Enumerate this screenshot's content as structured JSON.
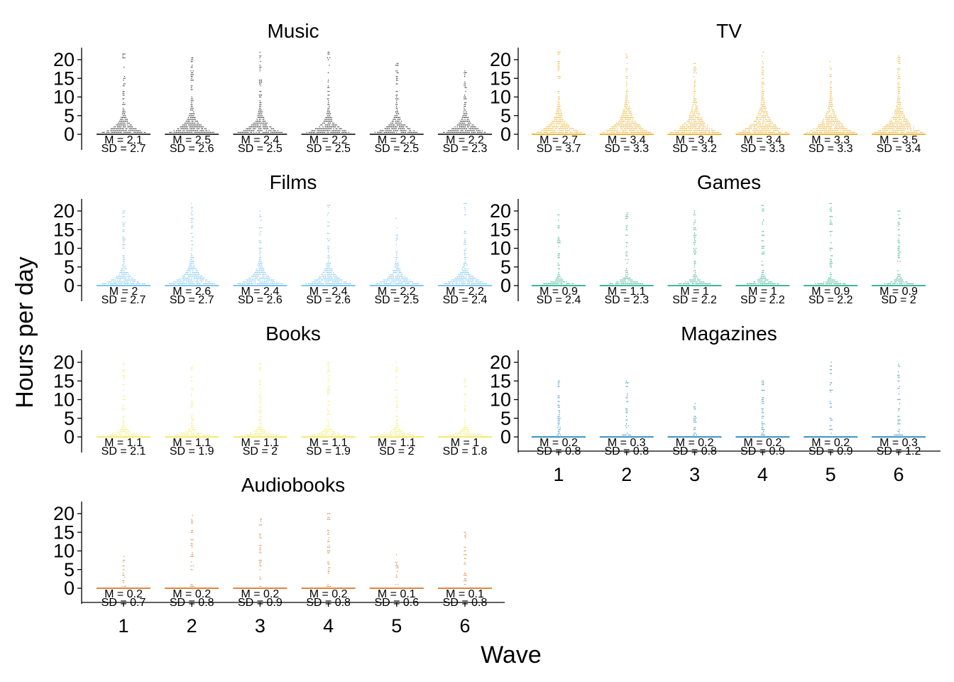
{
  "chart_data": {
    "type": "scatter",
    "subtype": "dot-histogram / beeswarm per wave",
    "xlabel": "Wave",
    "ylabel": "Hours per day",
    "x_categories": [
      "1",
      "2",
      "3",
      "4",
      "5",
      "6"
    ],
    "y_ticks": [
      0,
      5,
      10,
      15,
      20
    ],
    "ylim": [
      -3,
      23
    ],
    "grid": false,
    "legend": "none",
    "panels": [
      {
        "title": "Music",
        "color": "#000000",
        "max_hours": [
          22,
          21,
          22,
          22,
          22,
          17
        ],
        "M": [
          "M = 2.1",
          "M = 2.5",
          "M = 2.4",
          "M = 2.2",
          "M = 2.2",
          "M = 2.2"
        ],
        "SD": [
          "SD = 2.7",
          "SD = 2.6",
          "SD = 2.5",
          "SD = 2.5",
          "SD = 2.5",
          "SD = 2.3"
        ]
      },
      {
        "title": "TV",
        "color": "#E69F00",
        "max_hours": [
          22,
          22,
          21,
          22,
          22,
          21
        ],
        "M": [
          "M = 2.7",
          "M = 3.4",
          "M = 3.4",
          "M = 3.4",
          "M = 3.3",
          "M = 3.5"
        ],
        "SD": [
          "SD = 3.7",
          "SD = 3.3",
          "SD = 3.2",
          "SD = 3.3",
          "SD = 3.3",
          "SD = 3.4"
        ]
      },
      {
        "title": "Films",
        "color": "#56B4E9",
        "max_hours": [
          20,
          22,
          20,
          22,
          20,
          22
        ],
        "M": [
          "M = 2",
          "M = 2.6",
          "M = 2.4",
          "M = 2.4",
          "M = 2.2",
          "M = 2.2"
        ],
        "SD": [
          "SD = 2.7",
          "SD = 2.7",
          "SD = 2.6",
          "SD = 2.6",
          "SD = 2.5",
          "SD = 2.4"
        ]
      },
      {
        "title": "Games",
        "color": "#009E73",
        "max_hours": [
          21,
          20,
          20,
          22,
          22,
          20
        ],
        "M": [
          "M = 0.9",
          "M = 1.1",
          "M = 1",
          "M = 1",
          "M = 0.9",
          "M = 0.9"
        ],
        "SD": [
          "SD = 2.4",
          "SD = 2.3",
          "SD = 2.2",
          "SD = 2.2",
          "SD = 2.2",
          "SD = 2"
        ]
      },
      {
        "title": "Books",
        "color": "#F0E442",
        "max_hours": [
          20,
          20,
          20,
          20,
          20,
          16
        ],
        "M": [
          "M = 1.1",
          "M = 1.1",
          "M = 1.1",
          "M = 1.1",
          "M = 1.1",
          "M = 1"
        ],
        "SD": [
          "SD = 2.1",
          "SD = 1.9",
          "SD = 2",
          "SD = 1.9",
          "SD = 2",
          "SD = 1.8"
        ]
      },
      {
        "title": "Magazines",
        "color": "#0072B2",
        "max_hours": [
          15,
          15,
          10,
          15,
          20,
          20
        ],
        "M": [
          "M = 0.2",
          "M = 0.3",
          "M = 0.2",
          "M = 0.2",
          "M = 0.2",
          "M = 0.3"
        ],
        "SD": [
          "SD = 0.8",
          "SD = 0.8",
          "SD = 0.8",
          "SD = 0.9",
          "SD = 0.9",
          "SD = 1.2"
        ]
      },
      {
        "title": "Audiobooks",
        "color": "#D55E00",
        "max_hours": [
          10,
          20,
          20,
          20,
          9,
          15
        ],
        "M": [
          "M = 0.2",
          "M = 0.2",
          "M = 0.2",
          "M = 0.2",
          "M = 0.1",
          "M = 0.1"
        ],
        "SD": [
          "SD = 0.7",
          "SD = 0.8",
          "SD = 0.9",
          "SD = 0.8",
          "SD = 0.6",
          "SD = 0.8"
        ]
      }
    ]
  }
}
